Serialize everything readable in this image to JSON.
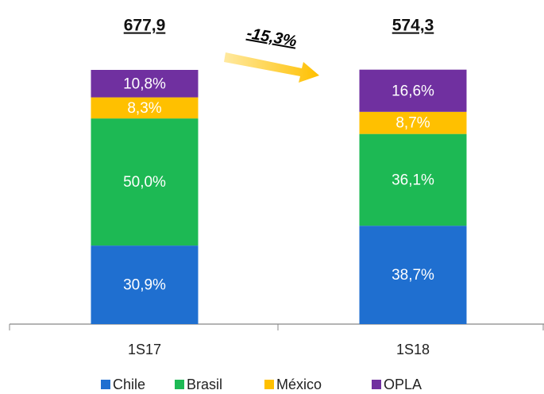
{
  "chart_data": {
    "type": "stacked_bar",
    "categories": [
      "1S17",
      "1S18"
    ],
    "series": [
      {
        "name": "Chile",
        "color": "#1f6fd0",
        "values": [
          30.9,
          38.7
        ],
        "value_labels": [
          "30,9%",
          "38,7%"
        ]
      },
      {
        "name": "Brasil",
        "color": "#1db954",
        "values": [
          50.0,
          36.1
        ],
        "value_labels": [
          "50,0%",
          "36,1%"
        ]
      },
      {
        "name": "México",
        "color": "#ffc000",
        "values": [
          8.3,
          8.7
        ],
        "value_labels": [
          "8,3%",
          "8,7%"
        ]
      },
      {
        "name": "OPLA",
        "color": "#7030a0",
        "values": [
          10.8,
          16.6
        ],
        "value_labels": [
          "10,8%",
          "16,6%"
        ]
      }
    ],
    "annotations": {
      "totals": [
        "677,9",
        "574,3"
      ],
      "change": "-15,3%"
    },
    "legend": "bottom"
  }
}
